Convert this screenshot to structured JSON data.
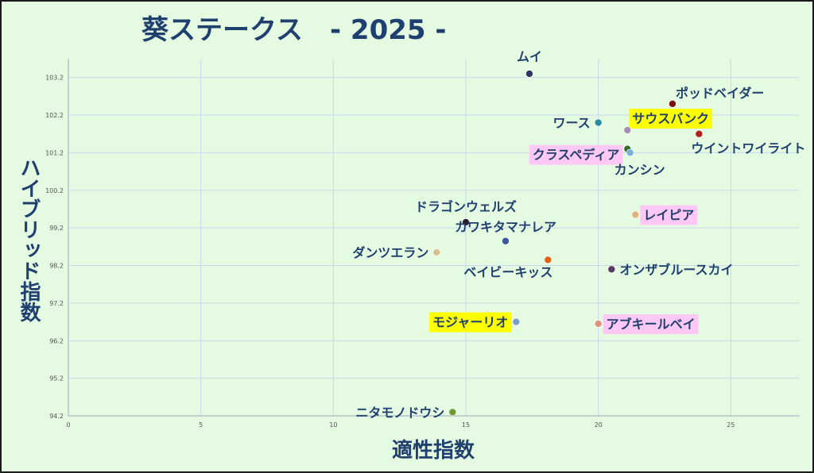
{
  "chart_data": {
    "type": "scatter",
    "title": "葵ステークス　- 2025 -",
    "xlabel": "適性指数",
    "ylabel": "ハイブリッド指数",
    "xlim": [
      0,
      27.6
    ],
    "ylim": [
      94.2,
      103.7
    ],
    "x_ticks": [
      0,
      5,
      10,
      15,
      20,
      25
    ],
    "y_ticks": [
      94.2,
      95.2,
      96.2,
      97.2,
      98.2,
      99.2,
      100.2,
      101.2,
      102.2,
      103.2
    ],
    "grid": true,
    "highlight_colors": {
      "yellow": "#ffff00",
      "pink": "#ffc8f5"
    },
    "points": [
      {
        "name": "ムイ",
        "x": 17.4,
        "y": 103.3,
        "color": "#2f3560",
        "highlight": ""
      },
      {
        "name": "ポッドベイダー",
        "x": 22.8,
        "y": 102.5,
        "color": "#7a1010",
        "highlight": ""
      },
      {
        "name": "ワース",
        "x": 20.0,
        "y": 102.0,
        "color": "#2a8ca0",
        "highlight": ""
      },
      {
        "name": "サウスバンク",
        "x": 21.1,
        "y": 101.8,
        "color": "#a890b8",
        "highlight": "yellow"
      },
      {
        "name": "ウイントワイライト",
        "x": 23.8,
        "y": 101.7,
        "color": "#b02020",
        "highlight": ""
      },
      {
        "name": "クラスペディア",
        "x": 21.1,
        "y": 101.3,
        "color": "#3a6a30",
        "highlight": "pink"
      },
      {
        "name": "カンシン",
        "x": 21.2,
        "y": 101.2,
        "color": "#7ab0d8",
        "highlight": ""
      },
      {
        "name": "ドラゴンウェルズ",
        "x": 15.0,
        "y": 99.35,
        "color": "#2a1f2f",
        "highlight": ""
      },
      {
        "name": "レイピア",
        "x": 21.4,
        "y": 99.55,
        "color": "#e0b080",
        "highlight": "pink"
      },
      {
        "name": "カワキタマナレア",
        "x": 16.5,
        "y": 98.85,
        "color": "#3a5aa0",
        "highlight": ""
      },
      {
        "name": "ダンツエラン",
        "x": 13.9,
        "y": 98.55,
        "color": "#d8c090",
        "highlight": ""
      },
      {
        "name": "ベイビーキッス",
        "x": 18.1,
        "y": 98.35,
        "color": "#e06010",
        "highlight": ""
      },
      {
        "name": "オンザブルースカイ",
        "x": 20.5,
        "y": 98.1,
        "color": "#5a3a60",
        "highlight": ""
      },
      {
        "name": "モジャーリオ",
        "x": 16.9,
        "y": 96.7,
        "color": "#7aa0c8",
        "highlight": "yellow"
      },
      {
        "name": "アブキールベイ",
        "x": 20.0,
        "y": 96.65,
        "color": "#e09080",
        "highlight": "pink"
      },
      {
        "name": "ニタモノドウシ",
        "x": 14.5,
        "y": 94.3,
        "color": "#6a9a30",
        "highlight": ""
      }
    ]
  }
}
